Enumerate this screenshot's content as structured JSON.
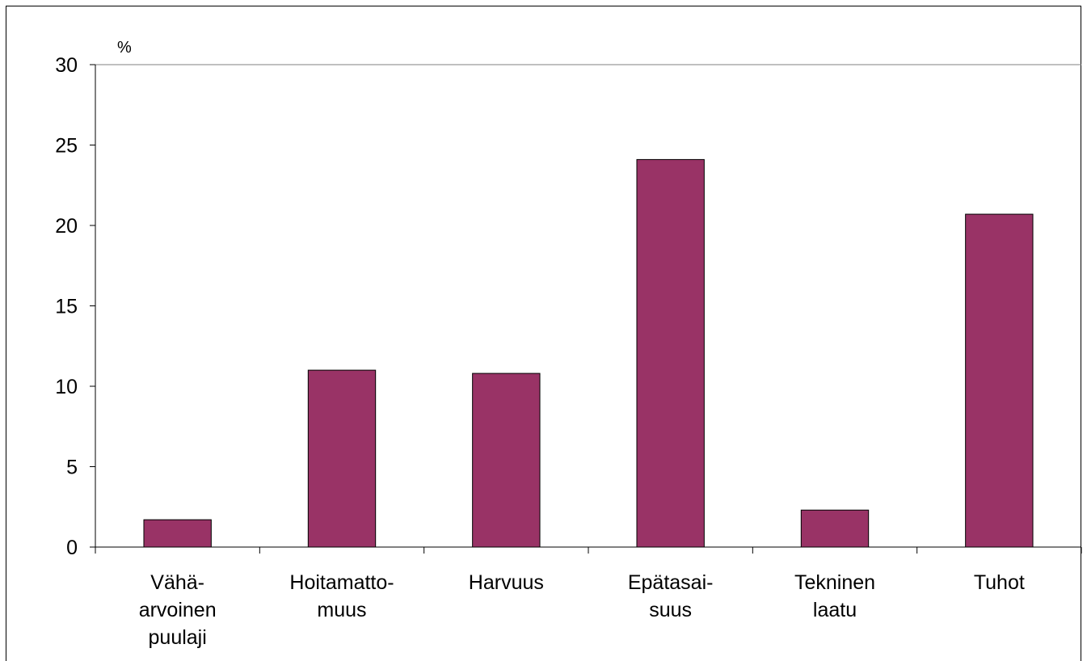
{
  "chart_data": {
    "type": "bar",
    "ylabel": "%",
    "ylim": [
      0,
      30
    ],
    "yticks": [
      0,
      5,
      10,
      15,
      20,
      25,
      30
    ],
    "grid": "top-line-only",
    "categories": [
      [
        "Vähä-",
        "arvoinen",
        "puulaji"
      ],
      [
        "Hoitamatto-",
        "muus"
      ],
      [
        "Harvuus"
      ],
      [
        "Epätasai-",
        "suus"
      ],
      [
        "Tekninen",
        "laatu"
      ],
      [
        "Tuhot"
      ]
    ],
    "values": [
      1.7,
      11.0,
      10.8,
      24.1,
      2.3,
      20.7
    ],
    "colors": {
      "bar": "#993366",
      "bar_edge": "#000000",
      "axis": "#000000",
      "grid": "#808080"
    }
  }
}
